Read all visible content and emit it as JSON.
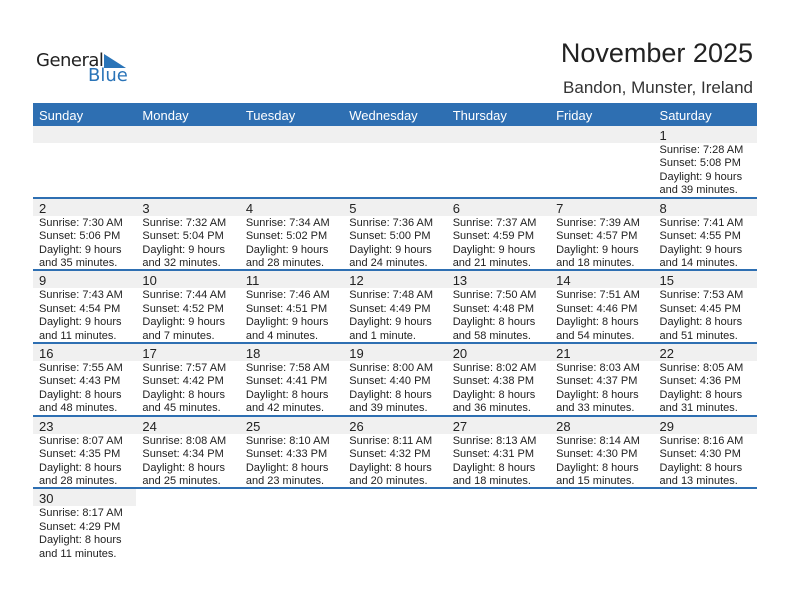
{
  "logo": {
    "line1": "General",
    "line2": "Blue"
  },
  "title": "November 2025",
  "location": "Bandon, Munster, Ireland",
  "colors": {
    "header": "#2e6fb2",
    "accent": "#2a74b8",
    "day_band": "#f0f0f0"
  },
  "weekdays": [
    "Sunday",
    "Monday",
    "Tuesday",
    "Wednesday",
    "Thursday",
    "Friday",
    "Saturday"
  ],
  "weeks": [
    [
      null,
      null,
      null,
      null,
      null,
      null,
      {
        "day": "1",
        "sunrise": "Sunrise: 7:28 AM",
        "sunset": "Sunset: 5:08 PM",
        "daylight": "Daylight: 9 hours",
        "minutes": "and 39 minutes."
      }
    ],
    [
      {
        "day": "2",
        "sunrise": "Sunrise: 7:30 AM",
        "sunset": "Sunset: 5:06 PM",
        "daylight": "Daylight: 9 hours",
        "minutes": "and 35 minutes."
      },
      {
        "day": "3",
        "sunrise": "Sunrise: 7:32 AM",
        "sunset": "Sunset: 5:04 PM",
        "daylight": "Daylight: 9 hours",
        "minutes": "and 32 minutes."
      },
      {
        "day": "4",
        "sunrise": "Sunrise: 7:34 AM",
        "sunset": "Sunset: 5:02 PM",
        "daylight": "Daylight: 9 hours",
        "minutes": "and 28 minutes."
      },
      {
        "day": "5",
        "sunrise": "Sunrise: 7:36 AM",
        "sunset": "Sunset: 5:00 PM",
        "daylight": "Daylight: 9 hours",
        "minutes": "and 24 minutes."
      },
      {
        "day": "6",
        "sunrise": "Sunrise: 7:37 AM",
        "sunset": "Sunset: 4:59 PM",
        "daylight": "Daylight: 9 hours",
        "minutes": "and 21 minutes."
      },
      {
        "day": "7",
        "sunrise": "Sunrise: 7:39 AM",
        "sunset": "Sunset: 4:57 PM",
        "daylight": "Daylight: 9 hours",
        "minutes": "and 18 minutes."
      },
      {
        "day": "8",
        "sunrise": "Sunrise: 7:41 AM",
        "sunset": "Sunset: 4:55 PM",
        "daylight": "Daylight: 9 hours",
        "minutes": "and 14 minutes."
      }
    ],
    [
      {
        "day": "9",
        "sunrise": "Sunrise: 7:43 AM",
        "sunset": "Sunset: 4:54 PM",
        "daylight": "Daylight: 9 hours",
        "minutes": "and 11 minutes."
      },
      {
        "day": "10",
        "sunrise": "Sunrise: 7:44 AM",
        "sunset": "Sunset: 4:52 PM",
        "daylight": "Daylight: 9 hours",
        "minutes": "and 7 minutes."
      },
      {
        "day": "11",
        "sunrise": "Sunrise: 7:46 AM",
        "sunset": "Sunset: 4:51 PM",
        "daylight": "Daylight: 9 hours",
        "minutes": "and 4 minutes."
      },
      {
        "day": "12",
        "sunrise": "Sunrise: 7:48 AM",
        "sunset": "Sunset: 4:49 PM",
        "daylight": "Daylight: 9 hours",
        "minutes": "and 1 minute."
      },
      {
        "day": "13",
        "sunrise": "Sunrise: 7:50 AM",
        "sunset": "Sunset: 4:48 PM",
        "daylight": "Daylight: 8 hours",
        "minutes": "and 58 minutes."
      },
      {
        "day": "14",
        "sunrise": "Sunrise: 7:51 AM",
        "sunset": "Sunset: 4:46 PM",
        "daylight": "Daylight: 8 hours",
        "minutes": "and 54 minutes."
      },
      {
        "day": "15",
        "sunrise": "Sunrise: 7:53 AM",
        "sunset": "Sunset: 4:45 PM",
        "daylight": "Daylight: 8 hours",
        "minutes": "and 51 minutes."
      }
    ],
    [
      {
        "day": "16",
        "sunrise": "Sunrise: 7:55 AM",
        "sunset": "Sunset: 4:43 PM",
        "daylight": "Daylight: 8 hours",
        "minutes": "and 48 minutes."
      },
      {
        "day": "17",
        "sunrise": "Sunrise: 7:57 AM",
        "sunset": "Sunset: 4:42 PM",
        "daylight": "Daylight: 8 hours",
        "minutes": "and 45 minutes."
      },
      {
        "day": "18",
        "sunrise": "Sunrise: 7:58 AM",
        "sunset": "Sunset: 4:41 PM",
        "daylight": "Daylight: 8 hours",
        "minutes": "and 42 minutes."
      },
      {
        "day": "19",
        "sunrise": "Sunrise: 8:00 AM",
        "sunset": "Sunset: 4:40 PM",
        "daylight": "Daylight: 8 hours",
        "minutes": "and 39 minutes."
      },
      {
        "day": "20",
        "sunrise": "Sunrise: 8:02 AM",
        "sunset": "Sunset: 4:38 PM",
        "daylight": "Daylight: 8 hours",
        "minutes": "and 36 minutes."
      },
      {
        "day": "21",
        "sunrise": "Sunrise: 8:03 AM",
        "sunset": "Sunset: 4:37 PM",
        "daylight": "Daylight: 8 hours",
        "minutes": "and 33 minutes."
      },
      {
        "day": "22",
        "sunrise": "Sunrise: 8:05 AM",
        "sunset": "Sunset: 4:36 PM",
        "daylight": "Daylight: 8 hours",
        "minutes": "and 31 minutes."
      }
    ],
    [
      {
        "day": "23",
        "sunrise": "Sunrise: 8:07 AM",
        "sunset": "Sunset: 4:35 PM",
        "daylight": "Daylight: 8 hours",
        "minutes": "and 28 minutes."
      },
      {
        "day": "24",
        "sunrise": "Sunrise: 8:08 AM",
        "sunset": "Sunset: 4:34 PM",
        "daylight": "Daylight: 8 hours",
        "minutes": "and 25 minutes."
      },
      {
        "day": "25",
        "sunrise": "Sunrise: 8:10 AM",
        "sunset": "Sunset: 4:33 PM",
        "daylight": "Daylight: 8 hours",
        "minutes": "and 23 minutes."
      },
      {
        "day": "26",
        "sunrise": "Sunrise: 8:11 AM",
        "sunset": "Sunset: 4:32 PM",
        "daylight": "Daylight: 8 hours",
        "minutes": "and 20 minutes."
      },
      {
        "day": "27",
        "sunrise": "Sunrise: 8:13 AM",
        "sunset": "Sunset: 4:31 PM",
        "daylight": "Daylight: 8 hours",
        "minutes": "and 18 minutes."
      },
      {
        "day": "28",
        "sunrise": "Sunrise: 8:14 AM",
        "sunset": "Sunset: 4:30 PM",
        "daylight": "Daylight: 8 hours",
        "minutes": "and 15 minutes."
      },
      {
        "day": "29",
        "sunrise": "Sunrise: 8:16 AM",
        "sunset": "Sunset: 4:30 PM",
        "daylight": "Daylight: 8 hours",
        "minutes": "and 13 minutes."
      }
    ],
    [
      {
        "day": "30",
        "sunrise": "Sunrise: 8:17 AM",
        "sunset": "Sunset: 4:29 PM",
        "daylight": "Daylight: 8 hours",
        "minutes": "and 11 minutes."
      },
      null,
      null,
      null,
      null,
      null,
      null
    ]
  ]
}
